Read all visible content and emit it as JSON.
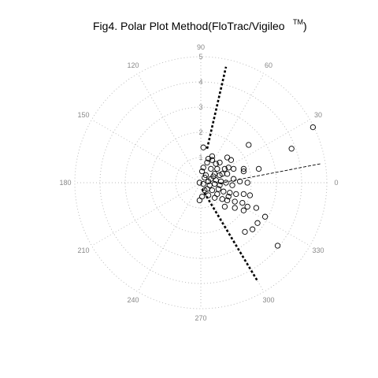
{
  "chart_data": {
    "type": "scatter",
    "coordinate_system": "polar",
    "title": "Fig4. Polar Plot Method(FloTrac/Vigileo",
    "title_superscript": "TM",
    "title_suffix": ")",
    "angle_labels": [
      "0",
      "30",
      "60",
      "90",
      "120",
      "150",
      "180",
      "210",
      "240",
      "270",
      "300",
      "330"
    ],
    "radial_labels": [
      "1",
      "2",
      "3",
      "4",
      "5"
    ],
    "rlim": [
      0,
      5
    ],
    "grid": true,
    "points_xy": [
      [
        4.45,
        2.2
      ],
      [
        3.6,
        1.35
      ],
      [
        1.9,
        1.5
      ],
      [
        2.3,
        0.55
      ],
      [
        1.7,
        0.55
      ],
      [
        1.7,
        0.45
      ],
      [
        1.2,
        0.9
      ],
      [
        1.05,
        1.0
      ],
      [
        0.75,
        0.8
      ],
      [
        0.6,
        0.75
      ],
      [
        0.45,
        0.9
      ],
      [
        0.25,
        0.8
      ],
      [
        0.95,
        0.55
      ],
      [
        0.65,
        0.55
      ],
      [
        0.4,
        0.55
      ],
      [
        0.1,
        0.6
      ],
      [
        0.05,
        0.45
      ],
      [
        0.2,
        0.3
      ],
      [
        0.5,
        0.25
      ],
      [
        0.75,
        0.3
      ],
      [
        1.05,
        0.35
      ],
      [
        1.3,
        0.15
      ],
      [
        1.55,
        0.05
      ],
      [
        1.85,
        0.0
      ],
      [
        0.3,
        0.05
      ],
      [
        0.55,
        -0.05
      ],
      [
        0.8,
        0.05
      ],
      [
        1.0,
        0.0
      ],
      [
        0.1,
        -0.05
      ],
      [
        -0.05,
        0.0
      ],
      [
        0.25,
        -0.25
      ],
      [
        0.45,
        -0.3
      ],
      [
        0.7,
        -0.25
      ],
      [
        0.9,
        -0.35
      ],
      [
        1.15,
        -0.4
      ],
      [
        1.4,
        -0.45
      ],
      [
        1.7,
        -0.45
      ],
      [
        1.95,
        -0.5
      ],
      [
        0.3,
        -0.5
      ],
      [
        0.55,
        -0.6
      ],
      [
        0.85,
        -0.65
      ],
      [
        1.05,
        -0.7
      ],
      [
        1.35,
        -0.75
      ],
      [
        1.65,
        -0.8
      ],
      [
        1.85,
        -0.95
      ],
      [
        0.95,
        -0.95
      ],
      [
        1.35,
        -1.0
      ],
      [
        1.7,
        -1.1
      ],
      [
        0.05,
        -0.55
      ],
      [
        -0.05,
        -0.7
      ],
      [
        2.2,
        -1.0
      ],
      [
        2.55,
        -1.35
      ],
      [
        2.25,
        -1.6
      ],
      [
        2.05,
        -1.85
      ],
      [
        1.75,
        -1.95
      ],
      [
        3.05,
        -2.5
      ],
      [
        0.1,
        1.4
      ],
      [
        0.3,
        0.95
      ],
      [
        0.15,
        0.2
      ],
      [
        0.6,
        0.1
      ],
      [
        0.35,
        -0.1
      ],
      [
        0.75,
        -0.1
      ],
      [
        1.25,
        -0.1
      ],
      [
        0.55,
        0.35
      ],
      [
        0.15,
        -0.3
      ],
      [
        1.1,
        0.6
      ],
      [
        1.3,
        0.55
      ],
      [
        0.45,
        1.05
      ],
      [
        0.85,
        0.35
      ],
      [
        0.65,
        -0.45
      ],
      [
        1.1,
        -0.55
      ],
      [
        0.4,
        0.15
      ]
    ],
    "reference_lines": [
      {
        "style": "thick-dotted",
        "from": [
          0.25,
          1.35
        ],
        "to": [
          1.0,
          4.6
        ]
      },
      {
        "style": "thick-dotted",
        "from": [
          0.05,
          -0.25
        ],
        "to": [
          2.25,
          -3.9
        ]
      },
      {
        "style": "thin-dashed",
        "from": [
          0.75,
          -0.02
        ],
        "to": [
          4.75,
          0.75
        ]
      }
    ]
  }
}
